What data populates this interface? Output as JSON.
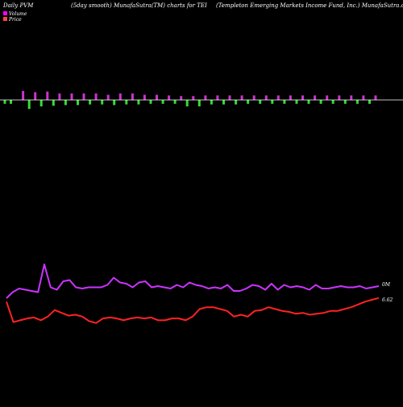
{
  "header": {
    "left": "Daily PVM",
    "center_left": "(5day smooth) MunafaSutra(TM) charts for TEI",
    "right": "(Templeton  Emerging Markets Income  Fund, Inc.) MunafaSutra.com"
  },
  "legend": {
    "volume_label": "Volume",
    "price_label": "Price",
    "volume_color": "#ff00ff",
    "price_color": "#ff4444"
  },
  "colors": {
    "background": "#000000",
    "volume_up": "#cc33cc",
    "volume_down": "#33dd33",
    "volume_line": "#cc33ff",
    "price_line": "#ff2222",
    "zero_line": "#ffffff"
  },
  "chart_data": {
    "type": "line",
    "volume_bars": {
      "values": [
        -0.6,
        -0.6,
        0,
        1.4,
        -1.4,
        1.2,
        -1.0,
        1.3,
        -0.9,
        1.0,
        -0.8,
        1.0,
        -0.8,
        1.0,
        -0.7,
        1.0,
        -0.7,
        0.8,
        -0.8,
        1.0,
        -0.7,
        1.0,
        -0.7,
        0.8,
        -0.6,
        0.8,
        -0.6,
        0.7,
        -0.6,
        0.6,
        -1.0,
        0.6,
        -1.0,
        0.7,
        -0.7,
        0.7,
        -0.7,
        0.7,
        -0.7,
        0.7,
        -0.6,
        0.7,
        -0.6,
        0.7,
        -0.6,
        0.7,
        -0.6,
        0.7,
        -0.6,
        0.7,
        -0.6,
        0.7,
        -0.6,
        0.7,
        -0.6,
        0.7,
        -0.6,
        0.7,
        -0.6,
        0.7,
        -0.6,
        0.7
      ]
    },
    "series": [
      {
        "name": "Volume",
        "values": [
          62,
          67,
          70,
          69,
          68,
          67,
          90,
          71,
          69,
          76,
          77,
          71,
          70,
          71,
          71,
          71,
          73,
          79,
          75,
          74,
          71,
          75,
          76,
          71,
          72,
          71,
          70,
          73,
          71,
          75,
          73,
          72,
          70,
          71,
          70,
          73,
          68,
          68,
          70,
          73,
          72,
          69,
          74,
          69,
          73,
          71,
          72,
          71,
          69,
          73,
          70,
          70,
          71,
          72,
          71,
          71,
          72,
          70,
          71,
          72
        ]
      },
      {
        "name": "Price",
        "values": [
          6.58,
          6.36,
          6.38,
          6.4,
          6.41,
          6.38,
          6.42,
          6.49,
          6.46,
          6.43,
          6.44,
          6.42,
          6.37,
          6.35,
          6.4,
          6.41,
          6.4,
          6.38,
          6.4,
          6.41,
          6.4,
          6.41,
          6.38,
          6.38,
          6.4,
          6.4,
          6.38,
          6.42,
          6.5,
          6.52,
          6.52,
          6.5,
          6.48,
          6.42,
          6.44,
          6.42,
          6.48,
          6.49,
          6.52,
          6.5,
          6.48,
          6.47,
          6.45,
          6.46,
          6.44,
          6.45,
          6.46,
          6.48,
          6.48,
          6.5,
          6.52,
          6.55,
          6.58,
          6.6,
          6.62
        ]
      }
    ],
    "annotations": {
      "volume_end_label": "0M",
      "price_end_label": "6.62"
    }
  }
}
